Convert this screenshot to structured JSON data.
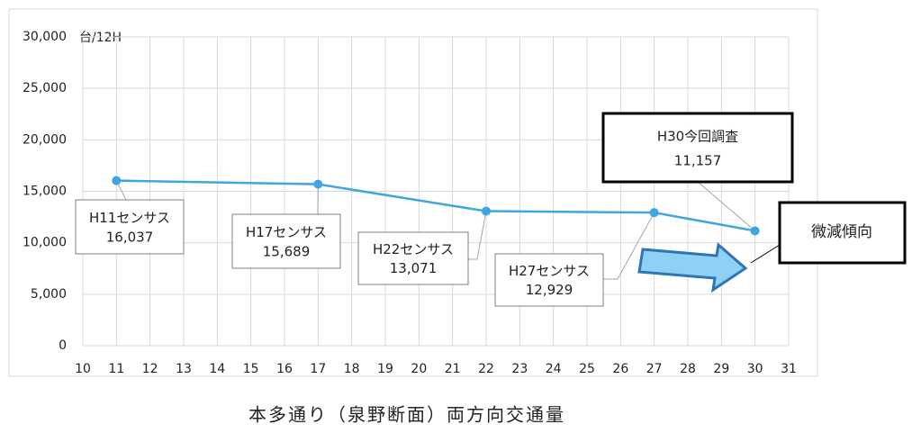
{
  "chart_data": {
    "type": "line",
    "title": "本多通り（泉野断面）両方向交通量",
    "y_unit_label": "台/12H",
    "annotation": "微減傾向",
    "x": [
      11,
      17,
      22,
      27,
      30
    ],
    "values": [
      16037,
      15689,
      13071,
      12929,
      11157
    ],
    "value_labels": [
      "16,037",
      "15,689",
      "13,071",
      "12,929",
      "11,157"
    ],
    "point_labels": [
      "H11センサス",
      "H17センサス",
      "H22センサス",
      "H27センサス",
      "H30今回調査"
    ],
    "color": "#3ea6e0",
    "xlim": [
      10,
      31
    ],
    "xticks": [
      10,
      11,
      12,
      13,
      14,
      15,
      16,
      17,
      18,
      19,
      20,
      21,
      22,
      23,
      24,
      25,
      26,
      27,
      28,
      29,
      30,
      31
    ],
    "ylim": [
      0,
      30000
    ],
    "yticks": [
      0,
      {
        "value": 5000,
        "label": "5,000"
      },
      {
        "value": 10000,
        "label": "10,000"
      },
      {
        "value": 15000,
        "label": "15,000"
      },
      {
        "value": 20000,
        "label": "20,000"
      },
      {
        "value": 25000,
        "label": "25,000"
      },
      {
        "value": 30000,
        "label": "30,000"
      }
    ],
    "grid": true
  }
}
